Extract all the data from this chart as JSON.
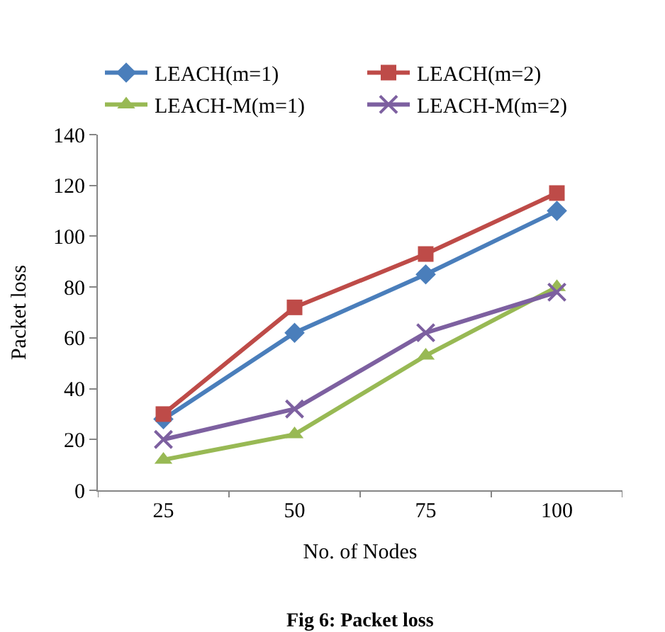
{
  "chart_data": {
    "type": "line",
    "xlabel": "No. of Nodes",
    "ylabel": "Packet loss",
    "categories": [
      "25",
      "50",
      "75",
      "100"
    ],
    "series": [
      {
        "name": "LEACH(m=1)",
        "color": "#4a7ebb",
        "marker": "diamond",
        "values": [
          28,
          62,
          85,
          110
        ]
      },
      {
        "name": "LEACH(m=2)",
        "color": "#be4b48",
        "marker": "square",
        "values": [
          30,
          72,
          93,
          117
        ]
      },
      {
        "name": "LEACH-M(m=1)",
        "color": "#98b954",
        "marker": "triangle",
        "values": [
          12,
          22,
          53,
          80
        ]
      },
      {
        "name": "LEACH-M(m=2)",
        "color": "#7d60a0",
        "marker": "cross",
        "values": [
          20,
          32,
          62,
          78
        ]
      }
    ],
    "ylim": [
      0,
      140
    ],
    "yticks": [
      0,
      20,
      40,
      60,
      80,
      100,
      120,
      140
    ],
    "legend": "top",
    "line_style": "solid",
    "annotations": [
      "Fig 6: Packet loss"
    ]
  }
}
